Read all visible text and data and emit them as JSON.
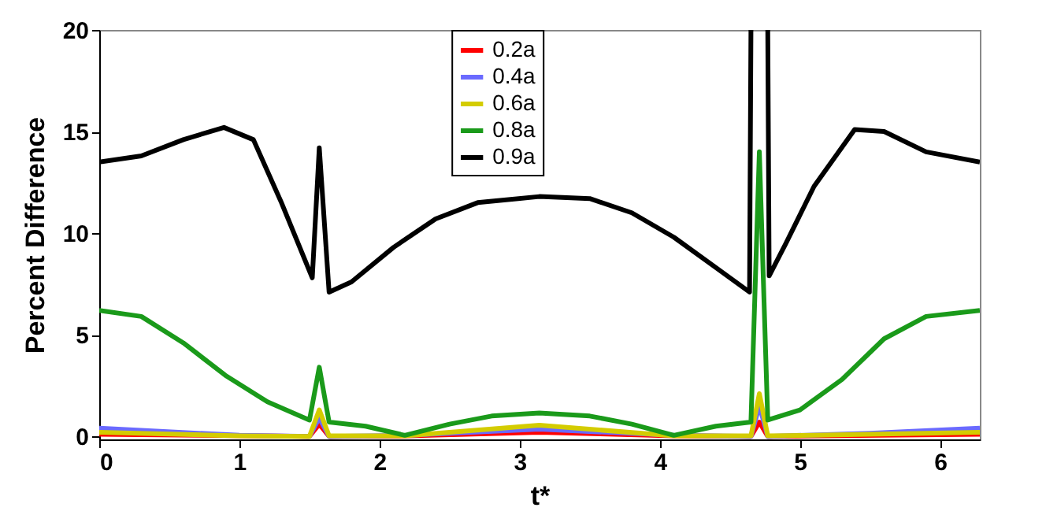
{
  "chart_data": {
    "type": "line",
    "xlabel": "t*",
    "ylabel": "Percent Difference",
    "xlim": [
      0,
      6.2832
    ],
    "ylim": [
      -0.15,
      20
    ],
    "xticks": [
      0,
      1,
      2,
      3,
      4,
      5,
      6
    ],
    "yticks": [
      0,
      5,
      10,
      15,
      20
    ],
    "legend": "top",
    "grid": false,
    "marker": "none",
    "line_style": "solid",
    "series": [
      {
        "name": "0.2a",
        "color": "#ff0000",
        "x": [
          0,
          1.5,
          1.57,
          1.64,
          2.2,
          3.14,
          4.1,
          4.65,
          4.71,
          4.77,
          6.2832
        ],
        "values": [
          0.1,
          0,
          0.6,
          0,
          0.02,
          0.2,
          0.02,
          0,
          0.7,
          0,
          0.1
        ]
      },
      {
        "name": "0.4a",
        "color": "#6a6aff",
        "x": [
          0,
          1,
          1.5,
          1.57,
          1.64,
          2.2,
          3.14,
          4.1,
          4.65,
          4.71,
          4.77,
          5.5,
          6.2832
        ],
        "values": [
          0.4,
          0.05,
          0,
          0.9,
          0,
          0.05,
          0.35,
          0.05,
          0,
          1.5,
          0,
          0.15,
          0.4
        ]
      },
      {
        "name": "0.6a",
        "color": "#d4cc00",
        "x": [
          0,
          1,
          1.5,
          1.57,
          1.64,
          2.18,
          3.14,
          4.1,
          4.65,
          4.71,
          4.77,
          5.5,
          6.2832
        ],
        "values": [
          0.2,
          0.02,
          0,
          1.3,
          0.02,
          0.02,
          0.55,
          0.02,
          0.02,
          2.1,
          0.02,
          0.1,
          0.2
        ]
      },
      {
        "name": "0.8a",
        "color": "#1a9a1a",
        "x": [
          0,
          0.3,
          0.6,
          0.9,
          1.2,
          1.5,
          1.57,
          1.64,
          1.9,
          2.18,
          2.5,
          2.8,
          3.14,
          3.5,
          3.8,
          4.1,
          4.4,
          4.65,
          4.71,
          4.77,
          5.0,
          5.3,
          5.6,
          5.9,
          6.2832
        ],
        "values": [
          6.2,
          5.9,
          4.6,
          3.0,
          1.7,
          0.8,
          3.4,
          0.7,
          0.5,
          0.05,
          0.6,
          1.0,
          1.15,
          1.0,
          0.6,
          0.05,
          0.5,
          0.7,
          14.0,
          0.8,
          1.3,
          2.8,
          4.8,
          5.9,
          6.2
        ]
      },
      {
        "name": "0.9a",
        "color": "#000000",
        "x": [
          0,
          0.3,
          0.6,
          0.89,
          1.1,
          1.3,
          1.52,
          1.57,
          1.64,
          1.8,
          2.1,
          2.4,
          2.7,
          3.14,
          3.5,
          3.8,
          4.1,
          4.4,
          4.64,
          4.65,
          4.71,
          4.77,
          4.78,
          4.9,
          5.1,
          5.39,
          5.6,
          5.9,
          6.2832
        ],
        "values": [
          13.5,
          13.8,
          14.6,
          15.2,
          14.6,
          11.5,
          7.8,
          14.2,
          7.1,
          7.6,
          9.3,
          10.7,
          11.5,
          11.8,
          11.7,
          11.0,
          9.8,
          8.3,
          7.1,
          20,
          null,
          20,
          7.9,
          9.5,
          12.3,
          15.1,
          15.0,
          14.0,
          13.5
        ]
      }
    ]
  }
}
